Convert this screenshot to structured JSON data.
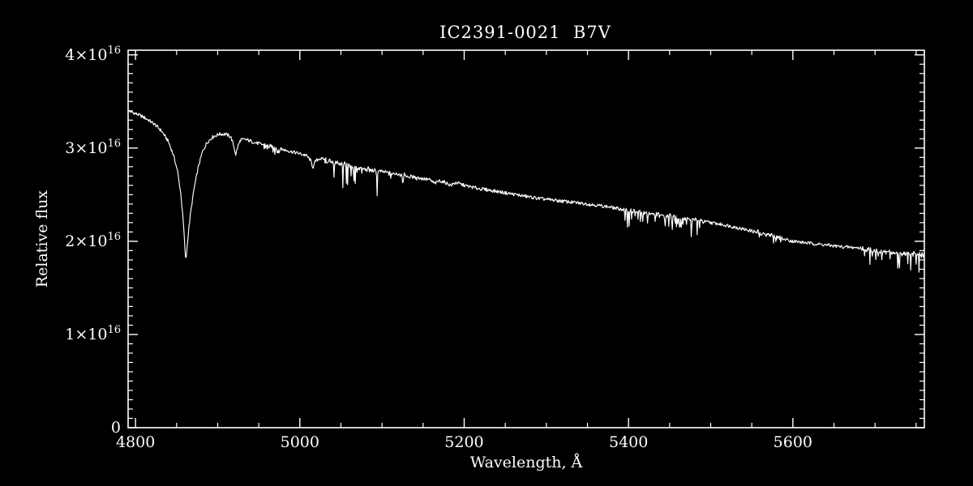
{
  "title": "IC2391-0021  B7V",
  "colors": {
    "background": "#000000",
    "foreground": "#ffffff"
  },
  "axes": {
    "x": {
      "title": "Wavelength, Å",
      "min": 4791,
      "max": 5760,
      "major_ticks": [
        4800,
        5000,
        5200,
        5400,
        5600
      ],
      "tick_labels": [
        "4800",
        "5000",
        "5200",
        "5400",
        "5600"
      ],
      "minor_step": 50
    },
    "y": {
      "title": "Relative flux",
      "min": 0,
      "max": 4.05,
      "unit_multiplier": "1e16",
      "major_ticks": [
        0,
        1,
        2,
        3,
        4
      ],
      "tick_labels": [
        {
          "base": "0",
          "exp": ""
        },
        {
          "base": "1×10",
          "exp": "16"
        },
        {
          "base": "2×10",
          "exp": "16"
        },
        {
          "base": "3×10",
          "exp": "16"
        },
        {
          "base": "4×10",
          "exp": "16"
        }
      ],
      "minor_step": 0.1
    }
  },
  "chart_data": {
    "type": "line",
    "title": "IC2391-0021  B7V",
    "xlabel": "Wavelength, Å",
    "ylabel": "Relative flux",
    "xlim": [
      4791,
      5760
    ],
    "ylim_1e16": [
      0,
      4.05
    ],
    "flux_unit_multiplier": 1e+16,
    "grid": false,
    "legend": "none",
    "series": [
      {
        "name": "spectrum",
        "color": "#ffffff",
        "flux_units_1e16": true,
        "continuum_points": [
          [
            4791,
            3.4
          ],
          [
            4800,
            3.37
          ],
          [
            4808,
            3.34
          ],
          [
            4816,
            3.3
          ],
          [
            4824,
            3.25
          ],
          [
            4832,
            3.18
          ],
          [
            4840,
            3.07
          ],
          [
            4846,
            2.93
          ],
          [
            4851,
            2.76
          ],
          [
            4855,
            2.52
          ],
          [
            4858,
            2.23
          ],
          [
            4860,
            1.95
          ],
          [
            4861,
            1.79
          ],
          [
            4862,
            1.86
          ],
          [
            4864,
            2.06
          ],
          [
            4867,
            2.3
          ],
          [
            4871,
            2.55
          ],
          [
            4876,
            2.78
          ],
          [
            4881,
            2.95
          ],
          [
            4887,
            3.06
          ],
          [
            4894,
            3.12
          ],
          [
            4902,
            3.15
          ],
          [
            4910,
            3.15
          ],
          [
            4916,
            3.12
          ],
          [
            4919,
            3.04
          ],
          [
            4922,
            2.93
          ],
          [
            4925,
            3.03
          ],
          [
            4928,
            3.09
          ],
          [
            4935,
            3.09
          ],
          [
            4945,
            3.06
          ],
          [
            4958,
            3.03
          ],
          [
            4972,
            3.0
          ],
          [
            4986,
            2.97
          ],
          [
            5000,
            2.94
          ],
          [
            5008,
            2.92
          ],
          [
            5013,
            2.87
          ],
          [
            5016,
            2.79
          ],
          [
            5019,
            2.86
          ],
          [
            5024,
            2.89
          ],
          [
            5032,
            2.87
          ],
          [
            5045,
            2.84
          ],
          [
            5060,
            2.81
          ],
          [
            5075,
            2.78
          ],
          [
            5090,
            2.76
          ],
          [
            5105,
            2.74
          ],
          [
            5125,
            2.71
          ],
          [
            5145,
            2.68
          ],
          [
            5158,
            2.66
          ],
          [
            5164,
            2.62
          ],
          [
            5170,
            2.65
          ],
          [
            5177,
            2.63
          ],
          [
            5184,
            2.6
          ],
          [
            5190,
            2.63
          ],
          [
            5200,
            2.6
          ],
          [
            5215,
            2.57
          ],
          [
            5230,
            2.55
          ],
          [
            5250,
            2.52
          ],
          [
            5270,
            2.49
          ],
          [
            5290,
            2.46
          ],
          [
            5310,
            2.44
          ],
          [
            5330,
            2.42
          ],
          [
            5350,
            2.4
          ],
          [
            5375,
            2.37
          ],
          [
            5400,
            2.33
          ],
          [
            5425,
            2.3
          ],
          [
            5450,
            2.27
          ],
          [
            5475,
            2.24
          ],
          [
            5500,
            2.2
          ],
          [
            5520,
            2.17
          ],
          [
            5540,
            2.13
          ],
          [
            5560,
            2.09
          ],
          [
            5580,
            2.05
          ],
          [
            5600,
            2.0
          ],
          [
            5620,
            1.98
          ],
          [
            5640,
            1.96
          ],
          [
            5660,
            1.94
          ],
          [
            5680,
            1.93
          ],
          [
            5700,
            1.9
          ],
          [
            5720,
            1.88
          ],
          [
            5740,
            1.87
          ],
          [
            5760,
            1.85
          ]
        ],
        "base_noise": 0.018,
        "noise_regions": [
          {
            "from": 4956,
            "to": 4978,
            "max_depth": 0.07,
            "threshold": 0.82
          },
          {
            "from": 5028,
            "to": 5098,
            "max_depth": 0.26,
            "threshold": 0.76
          },
          {
            "from": 5108,
            "to": 5150,
            "max_depth": 0.06,
            "threshold": 0.85
          },
          {
            "from": 5395,
            "to": 5492,
            "max_depth": 0.17,
            "threshold": 0.78
          },
          {
            "from": 5555,
            "to": 5590,
            "max_depth": 0.07,
            "threshold": 0.83
          },
          {
            "from": 5682,
            "to": 5760,
            "max_depth": 0.2,
            "threshold": 0.74
          }
        ]
      }
    ]
  }
}
